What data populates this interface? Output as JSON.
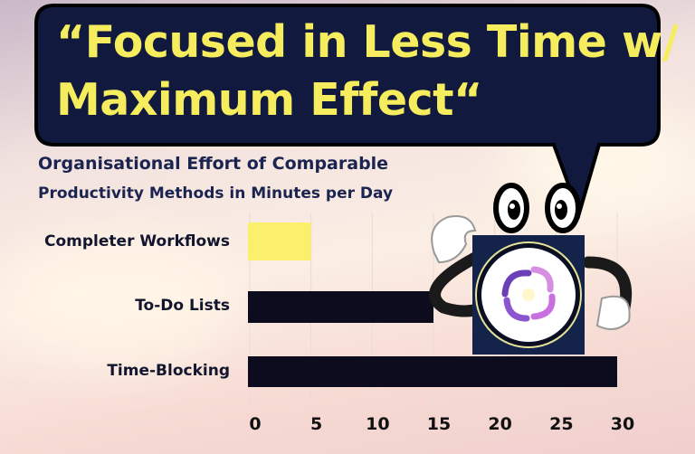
{
  "headline": {
    "line1": "“Focused in Less Time w/",
    "line2": "Maximum Effect“"
  },
  "chart_data": {
    "type": "bar",
    "orientation": "horizontal",
    "title_line1": "Organisational Effort of Comparable",
    "title_line2": "Productivity Methods in Minutes per Day",
    "categories": [
      "Completer Workflows",
      "To-Do Lists",
      "Time-Blocking"
    ],
    "values": [
      5,
      15,
      30
    ],
    "colors": [
      "#fbf06e",
      "#0d0c1e",
      "#0d0c1e"
    ],
    "xlim": [
      0,
      30
    ],
    "xticks": [
      "0",
      "5",
      "10",
      "15",
      "20",
      "25",
      "30"
    ],
    "grid": true
  },
  "colors": {
    "bubble": "#111a3e",
    "headline_text": "#f5ec5e",
    "title_text": "#1b2450"
  }
}
